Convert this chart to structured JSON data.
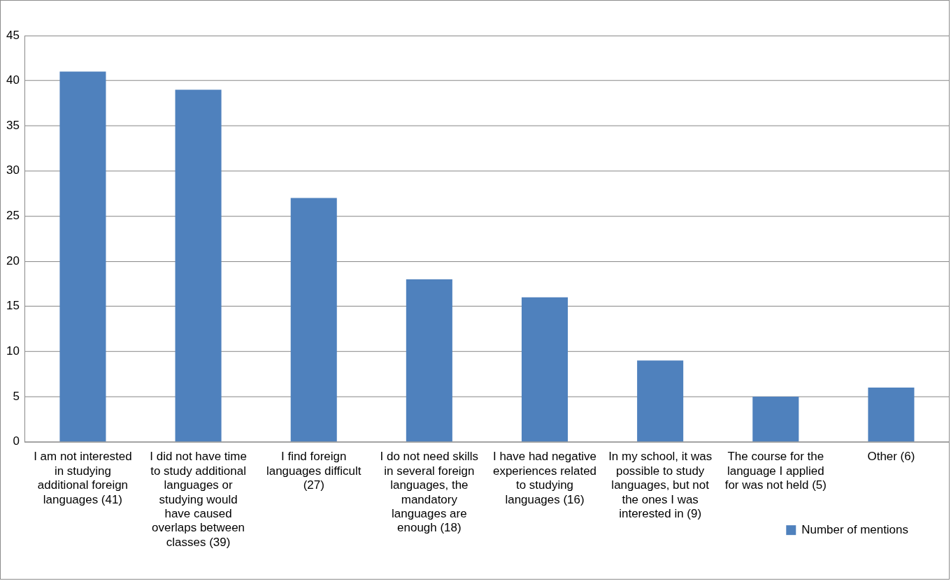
{
  "chart_data": {
    "type": "bar",
    "categories": [
      "I am not interested in studying additional foreign languages (41)",
      "I did not have time to study additional languages or studying would have caused overlaps between classes (39)",
      "I find foreign languages difficult (27)",
      "I do not need skills in several foreign languages, the mandatory languages are enough (18)",
      "I have had negative experiences related to studying languages (16)",
      "In my school, it was possible to study languages, but not the ones I was interested in (9)",
      "The course for the language I applied for was not held (5)",
      "Other (6)"
    ],
    "series": [
      {
        "name": "Number of mentions",
        "color": "#4f81bd",
        "values": [
          41,
          39,
          27,
          18,
          16,
          9,
          5,
          6
        ]
      }
    ],
    "ylim": [
      0,
      45
    ],
    "yticks": [
      0,
      5,
      10,
      15,
      20,
      25,
      30,
      35,
      40,
      45
    ],
    "grid": "y",
    "legend": "bottom right"
  }
}
